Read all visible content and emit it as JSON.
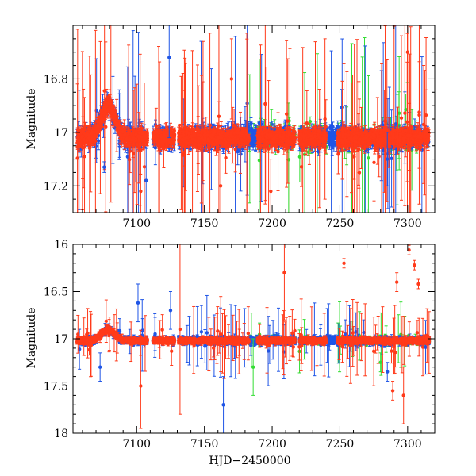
{
  "figure": {
    "xlabel": "HJD−2450000",
    "ylabel_top": "Magnitude",
    "ylabel_bottom": "Magnitude"
  },
  "colors": {
    "red": "#ff3a1a",
    "blue": "#1f55e6",
    "green": "#33dd33"
  },
  "chart_data": [
    {
      "type": "scatter",
      "panel": "top",
      "title": "",
      "xlabel": "",
      "ylabel": "Magnitude",
      "xlim": [
        7053,
        7320
      ],
      "ylim": [
        17.3,
        16.6
      ],
      "y_inverted": true,
      "xticks": [
        7100,
        7150,
        7200,
        7250,
        7300
      ],
      "yticks": [
        16.8,
        17,
        17.2
      ],
      "ytick_labels": [
        "16.8",
        "17",
        "17.2"
      ],
      "xtick_labels": [
        "7100",
        "7150",
        "7200",
        "7250",
        "7300"
      ],
      "grid": false,
      "error_bars": true,
      "baseline_mag": 17.02,
      "bump": {
        "center": 7079,
        "peak_mag": 16.9,
        "width": 7
      },
      "observing_segments": [
        {
          "x0": 7056,
          "x1": 7108,
          "series": [
            "red",
            "blue"
          ]
        },
        {
          "x0": 7112,
          "x1": 7128,
          "series": [
            "red",
            "blue"
          ]
        },
        {
          "x0": 7131,
          "x1": 7183,
          "series": [
            "red",
            "blue"
          ]
        },
        {
          "x0": 7183,
          "x1": 7189,
          "series": [
            "blue",
            "green"
          ]
        },
        {
          "x0": 7189,
          "x1": 7217,
          "series": [
            "red",
            "blue",
            "green"
          ]
        },
        {
          "x0": 7220,
          "x1": 7240,
          "series": [
            "red",
            "blue",
            "green"
          ]
        },
        {
          "x0": 7240,
          "x1": 7248,
          "series": [
            "blue"
          ]
        },
        {
          "x0": 7248,
          "x1": 7316,
          "series": [
            "red",
            "blue",
            "green"
          ]
        }
      ],
      "outliers": [
        {
          "x": 7076,
          "y": 17.13,
          "err": 0.02,
          "series": "blue"
        },
        {
          "x": 7103,
          "y": 17.22,
          "err": 0.15,
          "series": "red"
        },
        {
          "x": 7107,
          "y": 17.18,
          "err": 0.12,
          "series": "blue"
        },
        {
          "x": 7124,
          "y": 16.72,
          "err": 0.3,
          "series": "blue"
        },
        {
          "x": 7162,
          "y": 17.2,
          "err": 0.2,
          "series": "red"
        },
        {
          "x": 7170,
          "y": 16.8,
          "err": 0.15,
          "series": "red"
        },
        {
          "x": 7199,
          "y": 17.22,
          "err": 0.12,
          "series": "red"
        },
        {
          "x": 7239,
          "y": 16.95,
          "err": 0.3,
          "series": "red"
        },
        {
          "x": 7285,
          "y": 17.1,
          "err": 0.1,
          "series": "blue"
        },
        {
          "x": 7300,
          "y": 16.7,
          "err": 0.3,
          "series": "red"
        }
      ]
    },
    {
      "type": "scatter",
      "panel": "bottom",
      "title": "",
      "xlabel": "HJD−2450000",
      "ylabel": "Magnitude",
      "xlim": [
        7053,
        7320
      ],
      "ylim": [
        18,
        16
      ],
      "y_inverted": true,
      "xticks": [
        7100,
        7150,
        7200,
        7250,
        7300
      ],
      "yticks": [
        16,
        16.5,
        17,
        17.5,
        18
      ],
      "ytick_labels": [
        "16",
        "16.5",
        "17",
        "17.5",
        "18"
      ],
      "xtick_labels": [
        "7100",
        "7150",
        "7200",
        "7250",
        "7300"
      ],
      "grid": false,
      "error_bars": true,
      "baseline_mag": 17.02,
      "bump": {
        "center": 7079,
        "peak_mag": 16.9,
        "width": 7
      },
      "observing_segments": [
        {
          "x0": 7056,
          "x1": 7108,
          "series": [
            "red",
            "blue"
          ]
        },
        {
          "x0": 7112,
          "x1": 7128,
          "series": [
            "red",
            "blue"
          ]
        },
        {
          "x0": 7131,
          "x1": 7183,
          "series": [
            "red",
            "blue"
          ]
        },
        {
          "x0": 7183,
          "x1": 7189,
          "series": [
            "blue",
            "green"
          ]
        },
        {
          "x0": 7189,
          "x1": 7217,
          "series": [
            "red",
            "blue",
            "green"
          ]
        },
        {
          "x0": 7220,
          "x1": 7240,
          "series": [
            "red",
            "blue",
            "green"
          ]
        },
        {
          "x0": 7240,
          "x1": 7248,
          "series": [
            "blue"
          ]
        },
        {
          "x0": 7248,
          "x1": 7316,
          "series": [
            "red",
            "blue",
            "green"
          ]
        }
      ],
      "outliers": [
        {
          "x": 7103,
          "y": 17.5,
          "err": 0.45,
          "series": "red"
        },
        {
          "x": 7101,
          "y": 16.62,
          "err": 0.2,
          "series": "blue"
        },
        {
          "x": 7073,
          "y": 17.3,
          "err": 0.15,
          "series": "blue"
        },
        {
          "x": 7125,
          "y": 16.7,
          "err": 0.2,
          "series": "blue"
        },
        {
          "x": 7164,
          "y": 17.7,
          "err": 0.3,
          "series": "blue"
        },
        {
          "x": 7132,
          "y": 16.9,
          "err": 0.9,
          "series": "red"
        },
        {
          "x": 7209,
          "y": 16.3,
          "err": 0.5,
          "series": "red"
        },
        {
          "x": 7253,
          "y": 16.2,
          "err": 0.05,
          "series": "red"
        },
        {
          "x": 7285,
          "y": 17.35,
          "err": 0.1,
          "series": "blue"
        },
        {
          "x": 7289,
          "y": 17.55,
          "err": 0.1,
          "series": "red"
        },
        {
          "x": 7292,
          "y": 16.4,
          "err": 0.1,
          "series": "red"
        },
        {
          "x": 7301,
          "y": 16.06,
          "err": 0.05,
          "series": "red"
        },
        {
          "x": 7305,
          "y": 16.22,
          "err": 0.05,
          "series": "red"
        },
        {
          "x": 7308,
          "y": 16.42,
          "err": 0.05,
          "series": "red"
        },
        {
          "x": 7297,
          "y": 17.6,
          "err": 0.3,
          "series": "red"
        },
        {
          "x": 7186,
          "y": 17.3,
          "err": 0.3,
          "series": "green"
        },
        {
          "x": 7280,
          "y": 17.25,
          "err": 0.1,
          "series": "green"
        }
      ]
    }
  ]
}
